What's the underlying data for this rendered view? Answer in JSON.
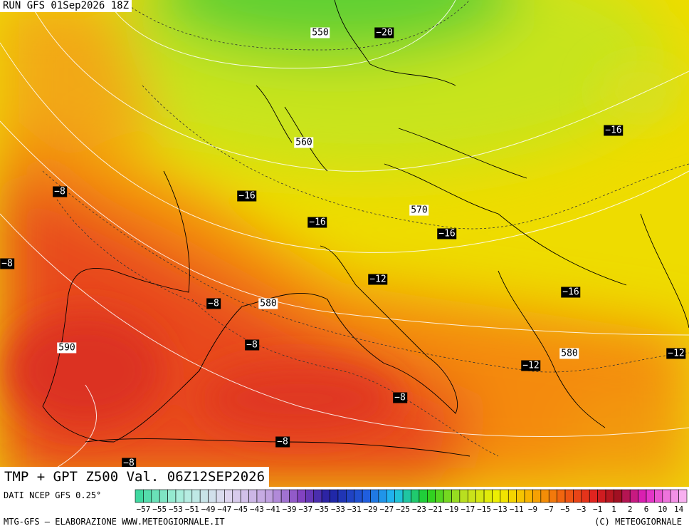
{
  "header": {
    "run": "RUN GFS 01Sep2026 18Z",
    "title": "TMP + GPT Z500 Val. 06Z12SEP2026"
  },
  "map": {
    "labels": [
      "550",
      "−20",
      "−16",
      "560",
      "−8",
      "−16",
      "570",
      "−16",
      "−16",
      "−8",
      "−12",
      "−16",
      "−8",
      "580",
      "590",
      "−8",
      "580",
      "−12",
      "−12",
      "−8",
      "−8",
      "−8"
    ]
  },
  "legend": {
    "source": "DATI NCEP GFS 0.25°",
    "ticks": [
      "−57",
      "−55",
      "−53",
      "−51",
      "−49",
      "−47",
      "−45",
      "−43",
      "−41",
      "−39",
      "−37",
      "−35",
      "−33",
      "−31",
      "−29",
      "−27",
      "−25",
      "−23",
      "−21",
      "−19",
      "−17",
      "−15",
      "−13",
      "−11",
      "−9",
      "−7",
      "−5",
      "−3",
      "−1",
      "1",
      "2",
      "6",
      "10",
      "14"
    ]
  },
  "footer": {
    "left": "MTG-GFS – ELABORAZIONE WWW.METEOGIORNALE.IT",
    "right": "(C) METEOGIORNALE"
  }
}
